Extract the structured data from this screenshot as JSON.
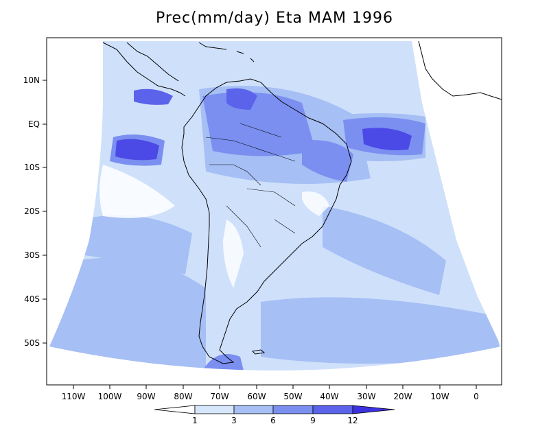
{
  "title": "Prec(mm/day) Eta MAM 1996",
  "lat_labels": [
    "10N",
    "EQ",
    "10S",
    "20S",
    "30S",
    "40S",
    "50S"
  ],
  "lon_labels": [
    "110W",
    "100W",
    "90W",
    "80W",
    "70W",
    "60W",
    "50W",
    "40W",
    "30W",
    "20W",
    "10W",
    "0"
  ],
  "colorbar": {
    "ticks": [
      "1",
      "3",
      "6",
      "9",
      "12"
    ],
    "colors": [
      "#ffffff",
      "#d6e6fb",
      "#a6bff4",
      "#7a8ff0",
      "#5a63ea",
      "#3c32e0"
    ]
  },
  "colors": {
    "ocean_low": "#cfe0fb",
    "ocean_mid": "#a6bff4",
    "heavy": "#6f7fee",
    "very_heavy": "#4c4ae6",
    "coast": "#000000"
  }
}
